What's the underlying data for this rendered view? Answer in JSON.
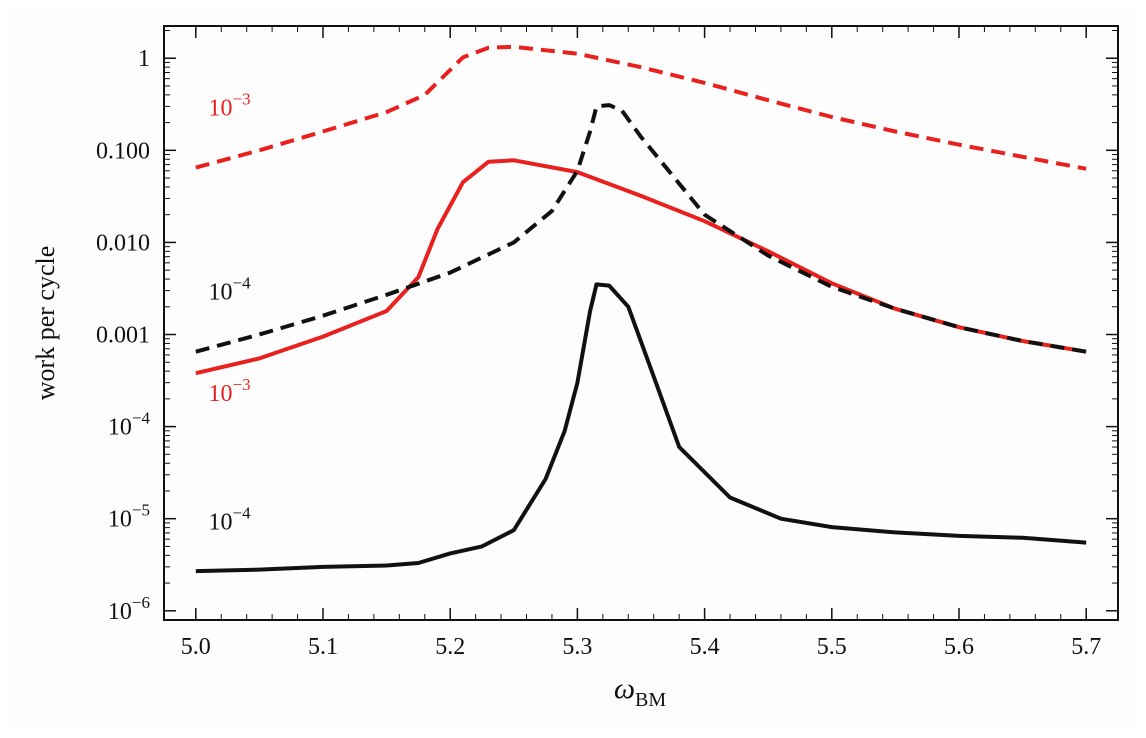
{
  "chart_data": {
    "type": "line",
    "title": "",
    "xlabel": {
      "base": "ω",
      "sub": "BM"
    },
    "ylabel": "work per cycle",
    "xlim": [
      4.975,
      5.725
    ],
    "ylog10_range": [
      -6.1,
      0.35
    ],
    "grid": false,
    "x_ticks": [
      {
        "value": 5.0,
        "label": "5.0"
      },
      {
        "value": 5.1,
        "label": "5.1"
      },
      {
        "value": 5.2,
        "label": "5.2"
      },
      {
        "value": 5.3,
        "label": "5.3"
      },
      {
        "value": 5.4,
        "label": "5.4"
      },
      {
        "value": 5.5,
        "label": "5.5"
      },
      {
        "value": 5.6,
        "label": "5.6"
      },
      {
        "value": 5.7,
        "label": "5.7"
      }
    ],
    "y_ticks": [
      {
        "log10": 0,
        "label": "1",
        "base": "",
        "exp": ""
      },
      {
        "log10": -1,
        "label": "0.100",
        "base": "",
        "exp": ""
      },
      {
        "log10": -2,
        "label": "0.010",
        "base": "",
        "exp": ""
      },
      {
        "log10": -3,
        "label": "0.001",
        "base": "",
        "exp": ""
      },
      {
        "log10": -4,
        "label": "",
        "base": "10",
        "exp": "−4"
      },
      {
        "log10": -5,
        "label": "",
        "base": "10",
        "exp": "−5"
      },
      {
        "log10": -6,
        "label": "",
        "base": "10",
        "exp": "−6"
      }
    ],
    "series": [
      {
        "name": "red-dashed",
        "label_base": "10",
        "label_exp": "−3",
        "label_anchor": {
          "x": 5.01,
          "log10": -0.62
        },
        "color": "#e8211e",
        "dash": true,
        "x": [
          5.0,
          5.05,
          5.1,
          5.15,
          5.18,
          5.21,
          5.23,
          5.25,
          5.3,
          5.35,
          5.4,
          5.45,
          5.5,
          5.55,
          5.6,
          5.65,
          5.7
        ],
        "y": [
          0.065,
          0.1,
          0.16,
          0.26,
          0.4,
          1.02,
          1.3,
          1.33,
          1.12,
          0.8,
          0.54,
          0.35,
          0.23,
          0.16,
          0.115,
          0.085,
          0.063
        ]
      },
      {
        "name": "red-solid",
        "label_base": "10",
        "label_exp": "−3",
        "label_anchor": {
          "x": 5.01,
          "log10": -3.72
        },
        "color": "#e8211e",
        "dash": false,
        "x": [
          5.0,
          5.05,
          5.1,
          5.15,
          5.175,
          5.19,
          5.21,
          5.23,
          5.25,
          5.3,
          5.35,
          5.4,
          5.45,
          5.5,
          5.55,
          5.6,
          5.65,
          5.7
        ],
        "y": [
          0.00038,
          0.00055,
          0.00095,
          0.0018,
          0.0042,
          0.014,
          0.045,
          0.075,
          0.078,
          0.058,
          0.032,
          0.017,
          0.008,
          0.0036,
          0.0019,
          0.0012,
          0.00085,
          0.00065
        ]
      },
      {
        "name": "black-dashed",
        "label_base": "10",
        "label_exp": "−4",
        "label_anchor": {
          "x": 5.01,
          "log10": -2.62
        },
        "color": "#111111",
        "dash": true,
        "x": [
          5.0,
          5.05,
          5.1,
          5.15,
          5.2,
          5.25,
          5.28,
          5.3,
          5.31,
          5.315,
          5.325,
          5.335,
          5.35,
          5.4,
          5.45,
          5.5,
          5.55,
          5.6,
          5.65,
          5.7
        ],
        "y": [
          0.00065,
          0.001,
          0.0016,
          0.0027,
          0.0047,
          0.01,
          0.022,
          0.06,
          0.16,
          0.3,
          0.31,
          0.27,
          0.14,
          0.02,
          0.0072,
          0.0033,
          0.0019,
          0.0012,
          0.00085,
          0.00065
        ]
      },
      {
        "name": "black-solid",
        "label_base": "10",
        "label_exp": "−4",
        "label_anchor": {
          "x": 5.01,
          "log10": -5.12
        },
        "color": "#111111",
        "dash": false,
        "x": [
          5.0,
          5.05,
          5.1,
          5.15,
          5.175,
          5.2,
          5.225,
          5.25,
          5.275,
          5.29,
          5.3,
          5.31,
          5.315,
          5.325,
          5.34,
          5.36,
          5.38,
          5.42,
          5.46,
          5.5,
          5.55,
          5.6,
          5.65,
          5.7
        ],
        "y": [
          2.7e-06,
          2.8e-06,
          3e-06,
          3.1e-06,
          3.3e-06,
          4.2e-06,
          5e-06,
          7.5e-06,
          2.7e-05,
          9e-05,
          0.0003,
          0.0018,
          0.0035,
          0.0034,
          0.002,
          0.00035,
          6e-05,
          1.7e-05,
          1e-05,
          8.1e-06,
          7.1e-06,
          6.5e-06,
          6.2e-06,
          5.5e-06
        ]
      }
    ]
  }
}
